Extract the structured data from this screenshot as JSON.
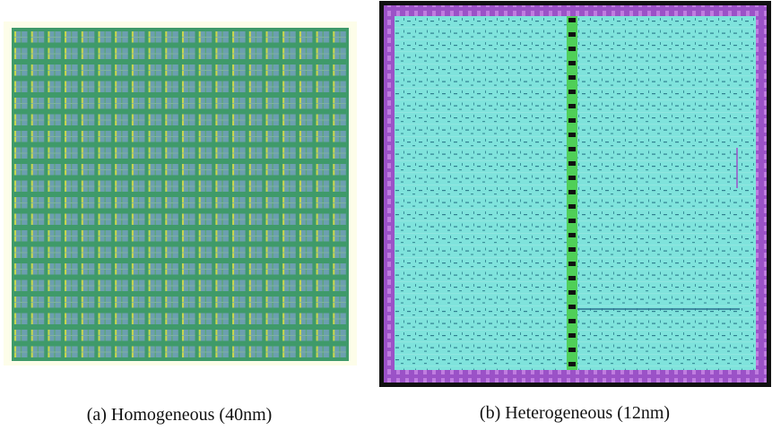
{
  "captions": {
    "left": "(a) Homogeneous (40nm)",
    "right": "(b) Heterogeneous (12nm)"
  }
}
